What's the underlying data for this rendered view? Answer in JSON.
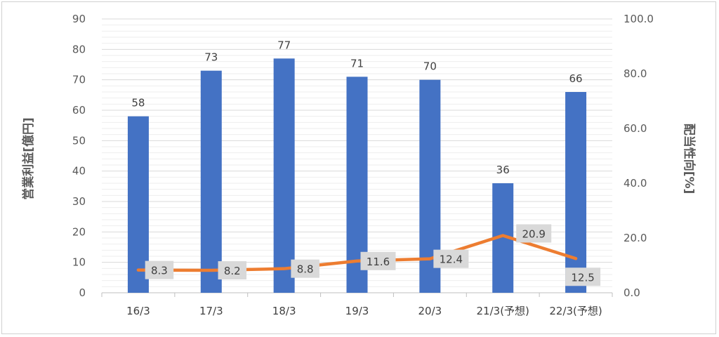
{
  "chart_data": {
    "type": "bar+line",
    "categories": [
      "16/3",
      "17/3",
      "18/3",
      "19/3",
      "20/3",
      "21/3(予想)",
      "22/3(予想)"
    ],
    "series": [
      {
        "type": "bar",
        "axis": "left",
        "values": [
          58,
          73,
          77,
          71,
          70,
          36,
          66
        ],
        "color": "#4472C4"
      },
      {
        "type": "line",
        "axis": "right",
        "values": [
          8.3,
          8.2,
          8.8,
          11.6,
          12.4,
          20.9,
          12.5
        ],
        "color": "#ED7D31"
      }
    ],
    "bar_labels": [
      "58",
      "73",
      "77",
      "71",
      "70",
      "36",
      "66"
    ],
    "line_labels": [
      "8.3",
      "8.2",
      "8.8",
      "11.6",
      "12.4",
      "20.9",
      "12.5"
    ],
    "ylabel": "営業利益[億円]",
    "y2label": "配当性向[%]",
    "ylim": [
      0,
      90
    ],
    "y2lim": [
      0,
      100
    ],
    "yticks": [
      "0",
      "10",
      "20",
      "30",
      "40",
      "50",
      "60",
      "70",
      "80",
      "90"
    ],
    "y2ticks": [
      "0.0",
      "20.0",
      "40.0",
      "60.0",
      "80.0",
      "100.0"
    ],
    "grid": true,
    "legend": "none"
  }
}
